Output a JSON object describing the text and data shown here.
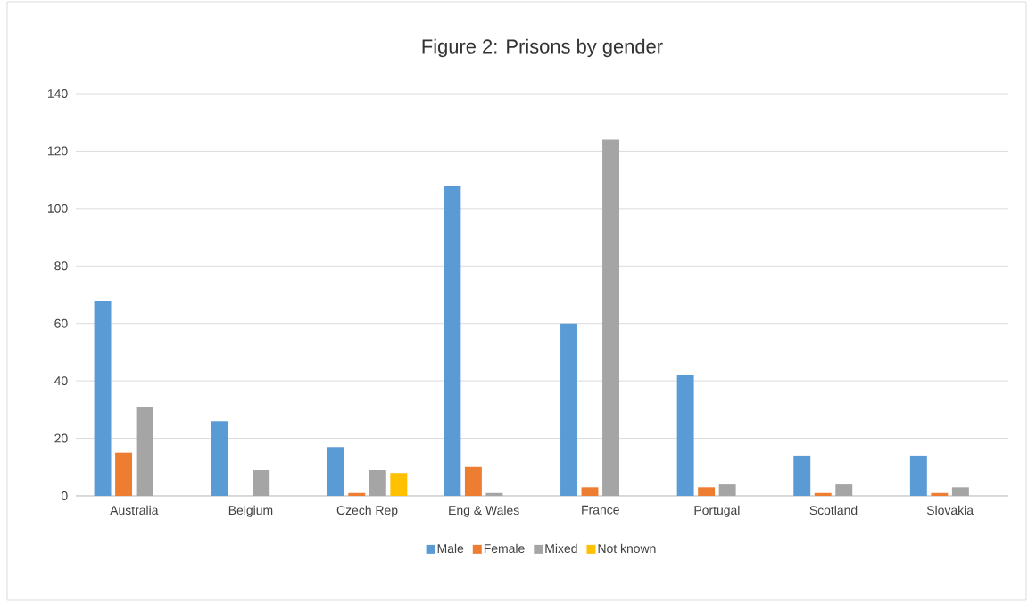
{
  "chart_data": {
    "type": "bar",
    "title": "Figure 2: Prisons by gender",
    "categories": [
      "Australia",
      "Belgium",
      "Czech Rep",
      "Eng & Wales",
      "France",
      "Portugal",
      "Scotland",
      "Slovakia"
    ],
    "series": [
      {
        "name": "Male",
        "color": "#5b9bd5",
        "values": [
          68,
          26,
          17,
          108,
          60,
          42,
          14,
          14
        ]
      },
      {
        "name": "Female",
        "color": "#ed7d31",
        "values": [
          15,
          0,
          1,
          10,
          3,
          3,
          1,
          1
        ]
      },
      {
        "name": "Mixed",
        "color": "#a5a5a5",
        "values": [
          31,
          9,
          9,
          1,
          124,
          4,
          4,
          3
        ]
      },
      {
        "name": "Not known",
        "color": "#ffc000",
        "values": [
          0,
          0,
          8,
          0,
          0,
          0,
          0,
          0
        ]
      }
    ],
    "ylim": [
      0,
      140
    ],
    "yticks": [
      0,
      20,
      40,
      60,
      80,
      100,
      120,
      140
    ],
    "grid": "y",
    "legend": "bottom"
  }
}
